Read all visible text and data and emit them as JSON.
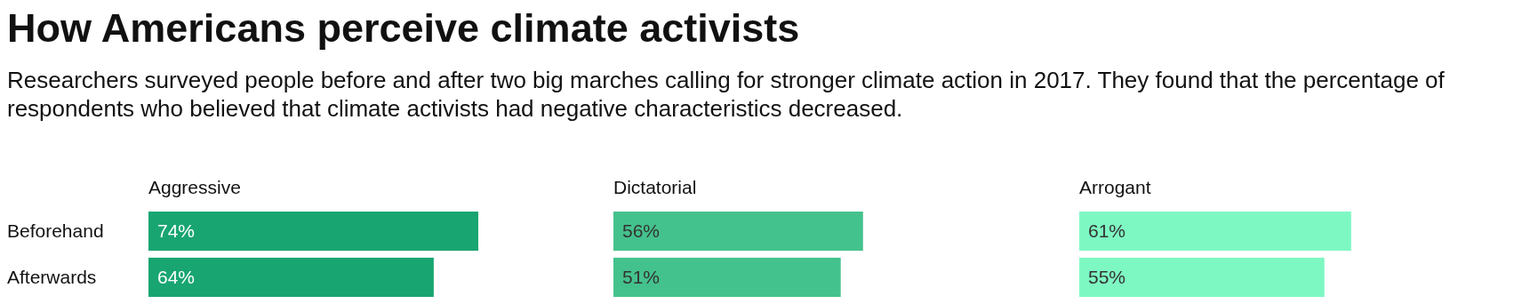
{
  "chart_data": [
    {
      "type": "other",
      "title": "How Americans perceive climate activists",
      "subtitle": "Researchers surveyed people before and after two big marches calling for stronger climate action in 2017. They found that the percentage of respondents who believed that climate activists had negative characteristics decreased."
    },
    {
      "type": "bar",
      "orientation": "horizontal",
      "title": "Aggressive",
      "categories": [
        "Beforehand",
        "Afterwards"
      ],
      "values": [
        74,
        64
      ],
      "value_labels": [
        "74%",
        "64%"
      ],
      "color": "#18a572",
      "tick_labels": "y"
    },
    {
      "type": "bar",
      "orientation": "horizontal",
      "title": "Dictatorial",
      "categories": [
        null,
        null
      ],
      "values": [
        56,
        51
      ],
      "value_labels": [
        "56%",
        "51%"
      ],
      "color": "#44c28d",
      "tick_labels": false
    },
    {
      "type": "bar",
      "orientation": "horizontal",
      "title": "Arrogant",
      "categories": [
        null,
        null
      ],
      "values": [
        61,
        55
      ],
      "value_labels": [
        "61%",
        "55%"
      ],
      "color": "#7ef8c3",
      "tick_labels": false
    }
  ]
}
